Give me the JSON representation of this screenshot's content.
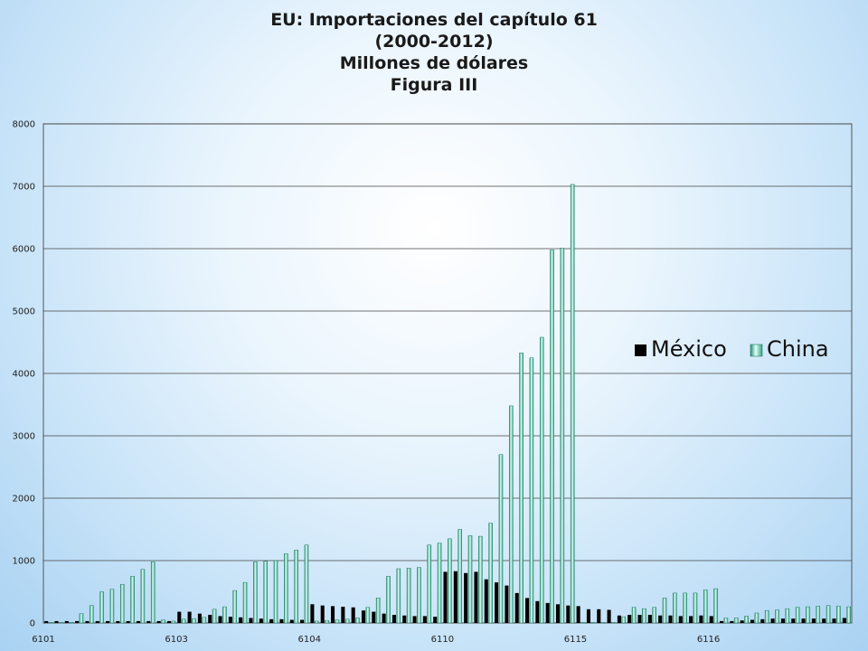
{
  "chart_data": {
    "type": "bar",
    "title_lines": [
      "EU: Importaciones del capítulo 61",
      "(2000-2012)",
      "Millones de dólares",
      "Figura III"
    ],
    "ylim": [
      0,
      8000
    ],
    "yticks": [
      0,
      1000,
      2000,
      3000,
      4000,
      5000,
      6000,
      7000,
      8000
    ],
    "x_tick_labels": [
      {
        "label": "6101",
        "index": 0
      },
      {
        "label": "6103",
        "index": 13
      },
      {
        "label": "6104",
        "index": 26
      },
      {
        "label": "6110",
        "index": 39
      },
      {
        "label": "6115",
        "index": 52
      },
      {
        "label": "6116",
        "index": 65
      }
    ],
    "legend_position": "right",
    "grid": true,
    "series": [
      {
        "name": "México",
        "color": "#000000",
        "values": [
          30,
          30,
          30,
          30,
          30,
          30,
          30,
          30,
          30,
          30,
          30,
          30,
          30,
          180,
          180,
          150,
          130,
          110,
          100,
          90,
          80,
          70,
          60,
          60,
          50,
          50,
          300,
          280,
          270,
          260,
          250,
          200,
          180,
          150,
          130,
          120,
          110,
          110,
          100,
          820,
          830,
          800,
          820,
          700,
          650,
          600,
          480,
          400,
          350,
          320,
          300,
          280,
          270,
          220,
          220,
          210,
          120,
          130,
          130,
          130,
          120,
          120,
          110,
          110,
          120,
          110,
          30,
          30,
          40,
          50,
          60,
          70,
          70,
          70,
          70,
          70,
          70,
          70,
          80
        ]
      },
      {
        "name": "China",
        "color": "#3cb89a",
        "values": [
          10,
          10,
          10,
          150,
          280,
          500,
          540,
          620,
          750,
          860,
          980,
          50,
          30,
          60,
          70,
          90,
          220,
          260,
          520,
          650,
          980,
          990,
          1000,
          1110,
          1170,
          1250,
          30,
          40,
          50,
          60,
          80,
          250,
          400,
          750,
          870,
          880,
          890,
          1250,
          1280,
          1350,
          1500,
          1400,
          1390,
          1600,
          2700,
          3480,
          4330,
          4250,
          4580,
          5980,
          6010,
          7030,
          10,
          10,
          10,
          10,
          100,
          250,
          230,
          250,
          400,
          480,
          480,
          480,
          530,
          550,
          80,
          80,
          110,
          160,
          200,
          210,
          230,
          250,
          260,
          270,
          280,
          270,
          260
        ]
      }
    ]
  }
}
